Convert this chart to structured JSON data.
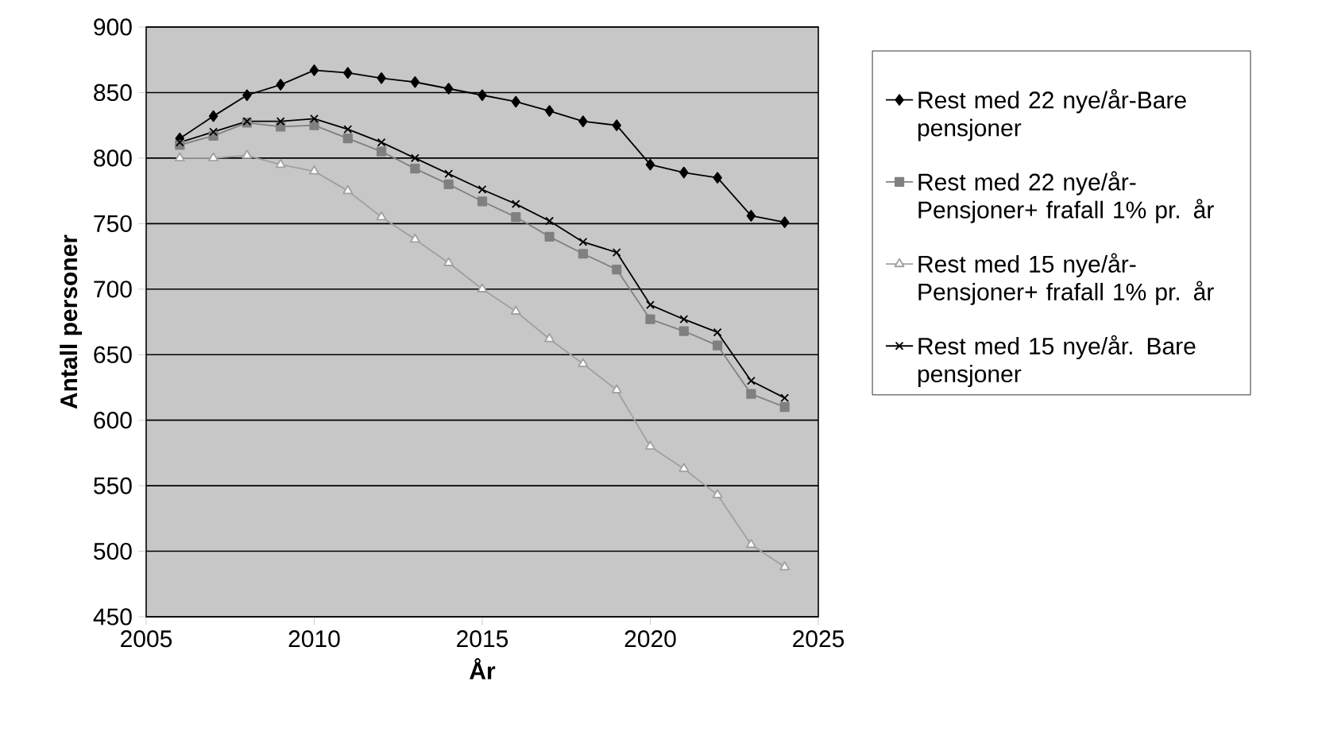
{
  "chart_data": {
    "type": "line",
    "xlabel": "År",
    "ylabel": "Antall personer",
    "x": [
      2006,
      2007,
      2008,
      2009,
      2010,
      2011,
      2012,
      2013,
      2014,
      2015,
      2016,
      2017,
      2018,
      2019,
      2020,
      2021,
      2022,
      2023,
      2024
    ],
    "xlim": [
      2005,
      2025
    ],
    "xticks": [
      2005,
      2010,
      2015,
      2020,
      2025
    ],
    "ylim": [
      450,
      900
    ],
    "yticks": [
      450,
      500,
      550,
      600,
      650,
      700,
      750,
      800,
      850,
      900
    ],
    "grid": "y",
    "legend": "right",
    "series": [
      {
        "name": "Rest med 22 nye/år-Bare pensjoner",
        "color": "#000000",
        "marker": "diamond",
        "values": [
          815,
          832,
          848,
          856,
          867,
          865,
          861,
          858,
          853,
          848,
          843,
          836,
          828,
          825,
          795,
          789,
          785,
          756,
          751
        ]
      },
      {
        "name": "Rest med 22 nye/år-Pensjoner+ frafall 1% pr. år",
        "color": "#808080",
        "marker": "square",
        "values": [
          810,
          817,
          827,
          824,
          825,
          815,
          805,
          792,
          780,
          767,
          755,
          740,
          727,
          715,
          677,
          668,
          657,
          620,
          610
        ]
      },
      {
        "name": "Rest med 15 nye/år-Pensjoner+ frafall 1% pr. år",
        "color": "#a0a0a0",
        "marker": "triangle",
        "values": [
          800,
          800,
          802,
          795,
          790,
          775,
          755,
          738,
          720,
          700,
          683,
          662,
          643,
          623,
          580,
          563,
          543,
          505,
          488
        ]
      },
      {
        "name": "Rest med 15 nye/år. Bare pensjoner",
        "color": "#000000",
        "marker": "cross",
        "values": [
          812,
          820,
          828,
          828,
          830,
          822,
          812,
          800,
          788,
          776,
          765,
          752,
          736,
          728,
          688,
          677,
          667,
          630,
          617
        ]
      }
    ]
  }
}
